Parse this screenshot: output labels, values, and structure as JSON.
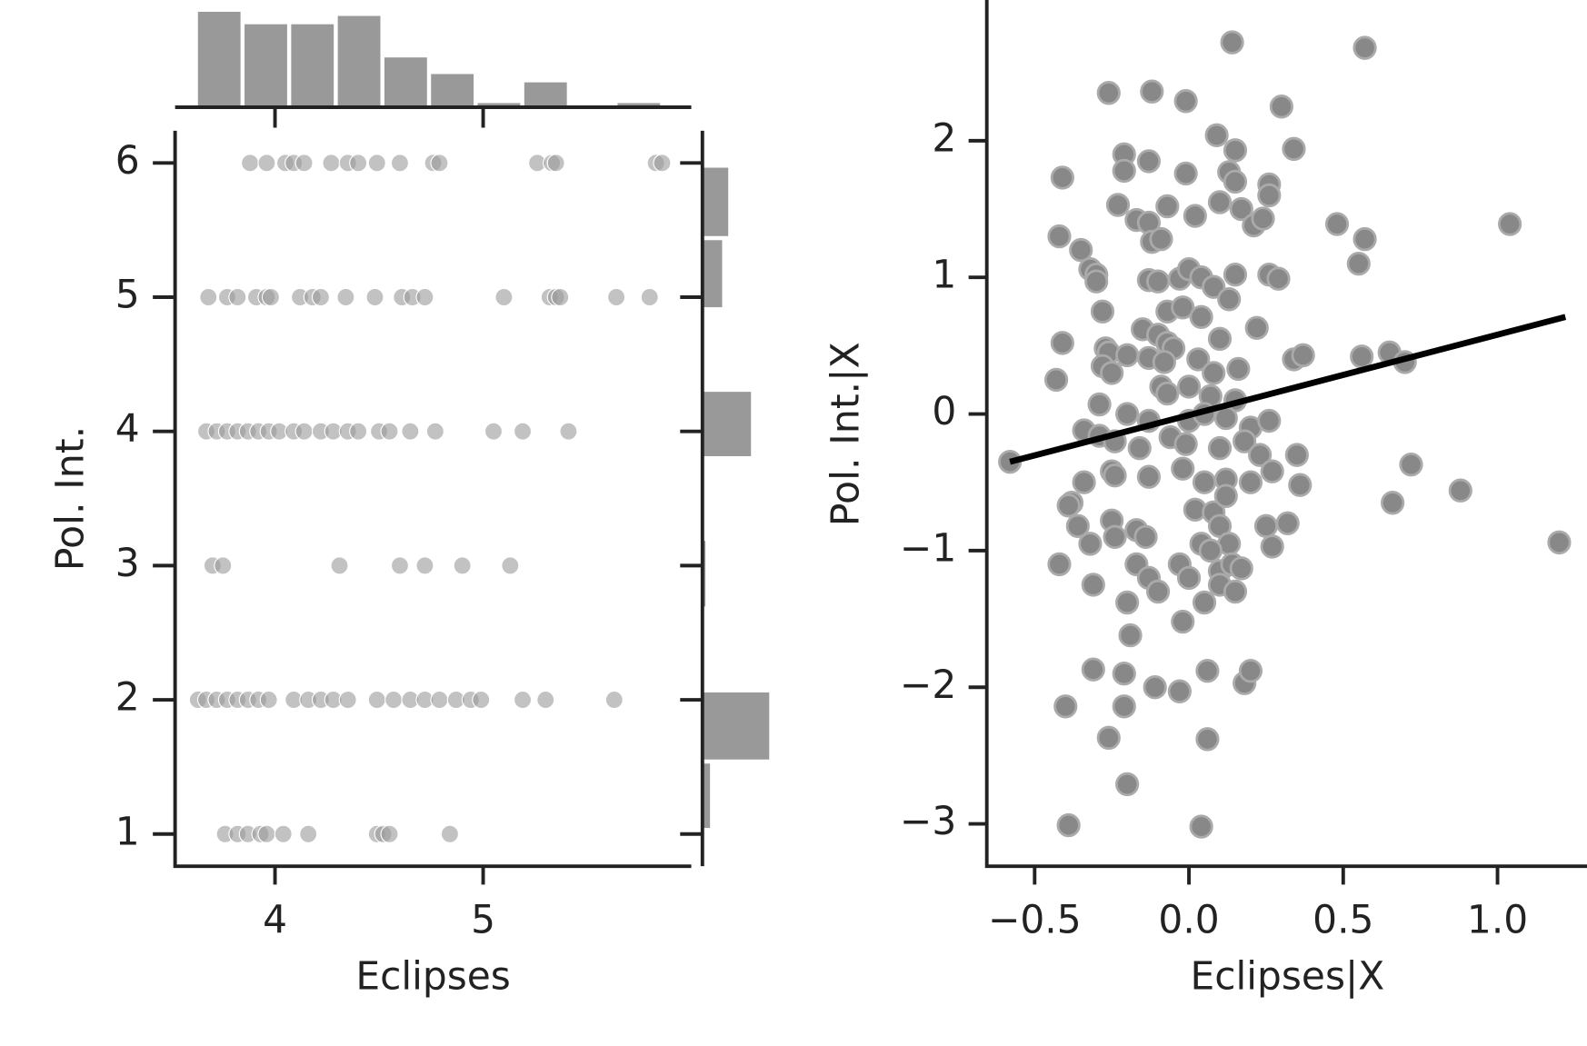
{
  "chart_data": [
    {
      "type": "joint-scatter",
      "x_label": "Eclipses",
      "y_label": "Pol. Int.",
      "xlim": [
        3.52,
        6.0
      ],
      "xticks": [
        4,
        5
      ],
      "ylim": [
        0.76,
        6.24
      ],
      "yticks": [
        1,
        2,
        3,
        4,
        5,
        6
      ],
      "color": "#999999",
      "x": [
        3.88,
        3.96,
        4.05,
        4.09,
        4.14,
        4.27,
        4.35,
        4.4,
        4.49,
        4.6,
        4.76,
        4.79,
        5.26,
        5.33,
        5.35,
        5.83,
        5.86,
        3.68,
        3.77,
        3.82,
        3.91,
        3.96,
        3.98,
        4.12,
        4.18,
        4.22,
        4.34,
        4.48,
        4.61,
        4.66,
        4.72,
        5.1,
        5.32,
        5.35,
        5.37,
        5.64,
        5.8,
        3.67,
        3.72,
        3.77,
        3.82,
        3.87,
        3.92,
        3.97,
        4.02,
        4.09,
        4.14,
        4.22,
        4.28,
        4.35,
        4.4,
        4.5,
        4.55,
        4.65,
        4.77,
        5.05,
        5.19,
        5.41,
        3.7,
        3.75,
        4.31,
        4.6,
        4.72,
        4.9,
        5.13,
        3.63,
        3.67,
        3.72,
        3.77,
        3.82,
        3.87,
        3.92,
        3.97,
        4.09,
        4.16,
        4.22,
        4.28,
        4.35,
        4.49,
        4.57,
        4.65,
        4.72,
        4.79,
        4.87,
        4.94,
        4.99,
        5.19,
        5.3,
        5.63,
        3.76,
        3.82,
        3.87,
        3.93,
        3.96,
        4.04,
        4.16,
        4.49,
        4.52,
        4.55,
        4.84
      ],
      "y": [
        6,
        6,
        6,
        6,
        6,
        6,
        6,
        6,
        6,
        6,
        6,
        6,
        6,
        6,
        6,
        6,
        6,
        5,
        5,
        5,
        5,
        5,
        5,
        5,
        5,
        5,
        5,
        5,
        5,
        5,
        5,
        5,
        5,
        5,
        5,
        5,
        5,
        4,
        4,
        4,
        4,
        4,
        4,
        4,
        4,
        4,
        4,
        4,
        4,
        4,
        4,
        4,
        4,
        4,
        4,
        4,
        4,
        4,
        3,
        3,
        3,
        3,
        3,
        3,
        3,
        2,
        2,
        2,
        2,
        2,
        2,
        2,
        2,
        2,
        2,
        2,
        2,
        2,
        2,
        2,
        2,
        2,
        2,
        2,
        2,
        2,
        2,
        2,
        2,
        1,
        1,
        1,
        1,
        1,
        1,
        1,
        1,
        1,
        1,
        1
      ],
      "x_hist": {
        "bins": [
          3.62,
          3.844,
          4.068,
          4.292,
          4.516,
          4.74,
          4.964,
          5.188,
          5.412,
          5.636,
          5.86
        ],
        "counts": [
          23,
          20,
          20,
          22,
          12,
          8,
          1,
          6,
          0,
          1
        ]
      },
      "y_hist": {
        "bins": [
          1.03,
          1.54,
          2.07,
          2.68,
          3.2,
          3.8,
          4.31,
          4.91,
          5.44,
          5.98
        ],
        "counts": [
          5,
          44,
          0,
          2,
          0,
          32,
          0,
          13,
          17
        ]
      }
    },
    {
      "type": "scatter",
      "x_label": "Eclipses|X",
      "y_label": "Pol. Int.|X",
      "xlim": [
        -0.655,
        1.29
      ],
      "xticks": [
        {
          "value": -0.5,
          "label": "−0.5"
        },
        {
          "value": 0,
          "label": "0.0"
        },
        0.5,
        {
          "value": 1,
          "label": "1.0"
        }
      ],
      "ylim": [
        -3.31,
        3.03
      ],
      "yticks": [
        {
          "value": -3,
          "label": "−3"
        },
        {
          "value": -2,
          "label": "−2"
        },
        {
          "value": -1,
          "label": "−1"
        },
        0,
        1,
        2
      ],
      "color": "#888888",
      "x": [
        0.14,
        0.57,
        -0.26,
        -0.12,
        -0.01,
        0.3,
        0.09,
        -0.21,
        -0.13,
        0.15,
        0.34,
        -0.41,
        -0.21,
        -0.01,
        0.13,
        0.15,
        0.26,
        0.26,
        -0.23,
        -0.07,
        0.1,
        0.17,
        0.02,
        -0.17,
        -0.13,
        0.21,
        0.24,
        0.48,
        1.04,
        -0.42,
        -0.12,
        -0.09,
        0.57,
        -0.35,
        -0.32,
        -0.3,
        -0.3,
        0.55,
        -0.13,
        -0.1,
        -0.03,
        0.0,
        0.04,
        0.08,
        0.15,
        0.26,
        0.29,
        -0.28,
        -0.07,
        -0.02,
        0.04,
        0.13,
        -0.41,
        -0.15,
        -0.1,
        -0.07,
        -0.05,
        0.1,
        0.22,
        -0.27,
        -0.26,
        -0.2,
        -0.28,
        -0.13,
        -0.08,
        0.03,
        0.08,
        0.16,
        0.34,
        0.37,
        0.56,
        0.65,
        0.7,
        -0.43,
        -0.25,
        -0.09,
        -0.07,
        0.0,
        0.07,
        0.15,
        -0.29,
        -0.2,
        -0.13,
        0.0,
        0.05,
        0.12,
        0.2,
        0.26,
        -0.34,
        -0.29,
        -0.24,
        -0.16,
        -0.06,
        -0.01,
        0.1,
        0.18,
        0.23,
        0.35,
        -0.58,
        -0.25,
        -0.24,
        -0.13,
        -0.02,
        0.05,
        0.12,
        0.2,
        0.27,
        0.36,
        0.72,
        -0.34,
        -0.38,
        -0.39,
        -0.36,
        -0.25,
        -0.17,
        0.02,
        0.08,
        0.12,
        0.66,
        0.88,
        1.2,
        -0.32,
        -0.24,
        -0.14,
        0.04,
        0.1,
        0.13,
        0.27,
        0.32,
        0.25,
        -0.42,
        -0.17,
        -0.03,
        0.07,
        0.1,
        0.14,
        0.17,
        -0.31,
        -0.13,
        0.0,
        0.1,
        0.15,
        -0.1,
        0.05,
        -0.2,
        -0.02,
        -0.19,
        -0.31,
        -0.21,
        -0.11,
        -0.03,
        0.06,
        0.18,
        0.2,
        -0.4,
        -0.21,
        -0.26,
        0.06,
        -0.2,
        -0.39,
        0.04
      ],
      "y": [
        2.72,
        2.68,
        2.35,
        2.36,
        2.29,
        2.25,
        2.04,
        1.9,
        1.85,
        1.93,
        1.94,
        1.73,
        1.78,
        1.76,
        1.77,
        1.7,
        1.68,
        1.6,
        1.53,
        1.52,
        1.55,
        1.5,
        1.45,
        1.42,
        1.4,
        1.38,
        1.43,
        1.39,
        1.39,
        1.3,
        1.26,
        1.28,
        1.28,
        1.2,
        1.06,
        1.02,
        0.97,
        1.1,
        0.98,
        0.97,
        0.99,
        1.06,
        1.0,
        0.93,
        1.02,
        1.02,
        0.99,
        0.75,
        0.75,
        0.78,
        0.71,
        0.84,
        0.52,
        0.62,
        0.58,
        0.52,
        0.48,
        0.55,
        0.63,
        0.48,
        0.45,
        0.43,
        0.35,
        0.41,
        0.38,
        0.4,
        0.3,
        0.33,
        0.4,
        0.43,
        0.42,
        0.45,
        0.38,
        0.25,
        0.3,
        0.2,
        0.15,
        0.2,
        0.13,
        0.1,
        0.07,
        0.0,
        -0.05,
        -0.05,
        0.0,
        -0.03,
        -0.1,
        -0.05,
        -0.12,
        -0.16,
        -0.2,
        -0.25,
        -0.17,
        -0.22,
        -0.25,
        -0.2,
        -0.3,
        -0.3,
        -0.35,
        -0.42,
        -0.45,
        -0.46,
        -0.4,
        -0.5,
        -0.48,
        -0.5,
        -0.42,
        -0.52,
        -0.37,
        -0.5,
        -0.65,
        -0.67,
        -0.82,
        -0.78,
        -0.85,
        -0.7,
        -0.72,
        -0.6,
        -0.65,
        -0.56,
        -0.94,
        -0.95,
        -0.9,
        -0.9,
        -0.95,
        -0.82,
        -0.95,
        -0.97,
        -0.8,
        -0.82,
        -1.1,
        -1.1,
        -1.1,
        -1.0,
        -1.15,
        -1.1,
        -1.13,
        -1.25,
        -1.2,
        -1.2,
        -1.25,
        -1.3,
        -1.3,
        -1.38,
        -1.38,
        -1.52,
        -1.62,
        -1.87,
        -1.9,
        -2.0,
        -2.03,
        -1.88,
        -1.97,
        -1.88,
        -2.14,
        -2.14,
        -2.37,
        -2.38,
        -2.71,
        -3.01,
        -3.02
      ],
      "fit_line": {
        "x": [
          -0.58,
          1.22
        ],
        "y": [
          -0.35,
          0.71
        ],
        "color": "#000000"
      }
    }
  ]
}
